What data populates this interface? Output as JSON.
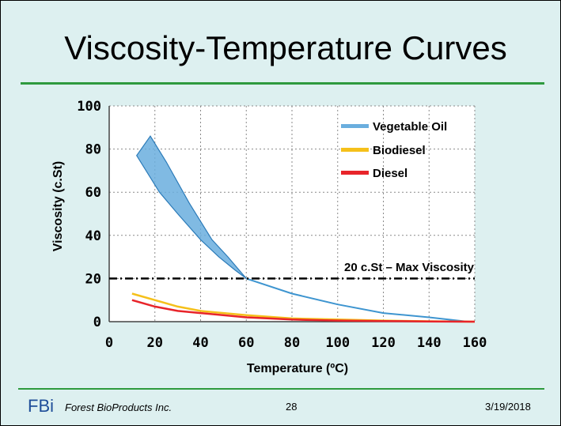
{
  "slide": {
    "title": "Viscosity-Temperature Curves",
    "brand": "FBi",
    "company": "Forest BioProducts Inc.",
    "page_number": "28",
    "date": "3/19/2018",
    "accent_color": "#2e9a3e"
  },
  "chart_data": {
    "type": "line",
    "title": "",
    "xlabel": "Temperature (ºC)",
    "ylabel": "Viscosity (c.St)",
    "xlim": [
      0,
      160
    ],
    "ylim": [
      0,
      100
    ],
    "xticks": [
      "0",
      "20",
      "40",
      "60",
      "80",
      "100",
      "120",
      "140",
      "160"
    ],
    "yticks": [
      "0",
      "20",
      "40",
      "60",
      "80",
      "100"
    ],
    "grid": true,
    "legend_position": "top-right",
    "series": [
      {
        "name": "Vegetable Oil",
        "color": "#5aaee0",
        "band_upper": [
          {
            "x": 12,
            "y": 77
          },
          {
            "x": 18,
            "y": 86
          },
          {
            "x": 25,
            "y": 74
          },
          {
            "x": 35,
            "y": 55
          },
          {
            "x": 45,
            "y": 38
          },
          {
            "x": 52,
            "y": 30
          },
          {
            "x": 60,
            "y": 20
          }
        ],
        "band_lower": [
          {
            "x": 12,
            "y": 77
          },
          {
            "x": 22,
            "y": 60
          },
          {
            "x": 30,
            "y": 50
          },
          {
            "x": 40,
            "y": 38
          },
          {
            "x": 48,
            "y": 30
          },
          {
            "x": 55,
            "y": 24
          },
          {
            "x": 60,
            "y": 20
          }
        ],
        "values": [
          {
            "x": 60,
            "y": 20
          },
          {
            "x": 80,
            "y": 13
          },
          {
            "x": 100,
            "y": 8
          },
          {
            "x": 120,
            "y": 4
          },
          {
            "x": 140,
            "y": 2
          },
          {
            "x": 157,
            "y": 0
          }
        ]
      },
      {
        "name": "Biodiesel",
        "color": "#f5c01a",
        "values": [
          {
            "x": 10,
            "y": 13
          },
          {
            "x": 20,
            "y": 10
          },
          {
            "x": 30,
            "y": 7
          },
          {
            "x": 40,
            "y": 5
          },
          {
            "x": 60,
            "y": 3
          },
          {
            "x": 80,
            "y": 1.5
          },
          {
            "x": 100,
            "y": 1
          },
          {
            "x": 120,
            "y": 0.5
          },
          {
            "x": 140,
            "y": 0.2
          },
          {
            "x": 160,
            "y": 0
          }
        ]
      },
      {
        "name": "Diesel",
        "color": "#e8242a",
        "values": [
          {
            "x": 10,
            "y": 10
          },
          {
            "x": 20,
            "y": 7
          },
          {
            "x": 30,
            "y": 5
          },
          {
            "x": 40,
            "y": 4
          },
          {
            "x": 60,
            "y": 2
          },
          {
            "x": 80,
            "y": 1
          },
          {
            "x": 100,
            "y": 0.5
          },
          {
            "x": 120,
            "y": 0.3
          },
          {
            "x": 140,
            "y": 0.1
          },
          {
            "x": 160,
            "y": 0
          }
        ]
      }
    ],
    "reference_line": {
      "y": 20,
      "label": "20 c.St – Max Viscosity"
    }
  }
}
